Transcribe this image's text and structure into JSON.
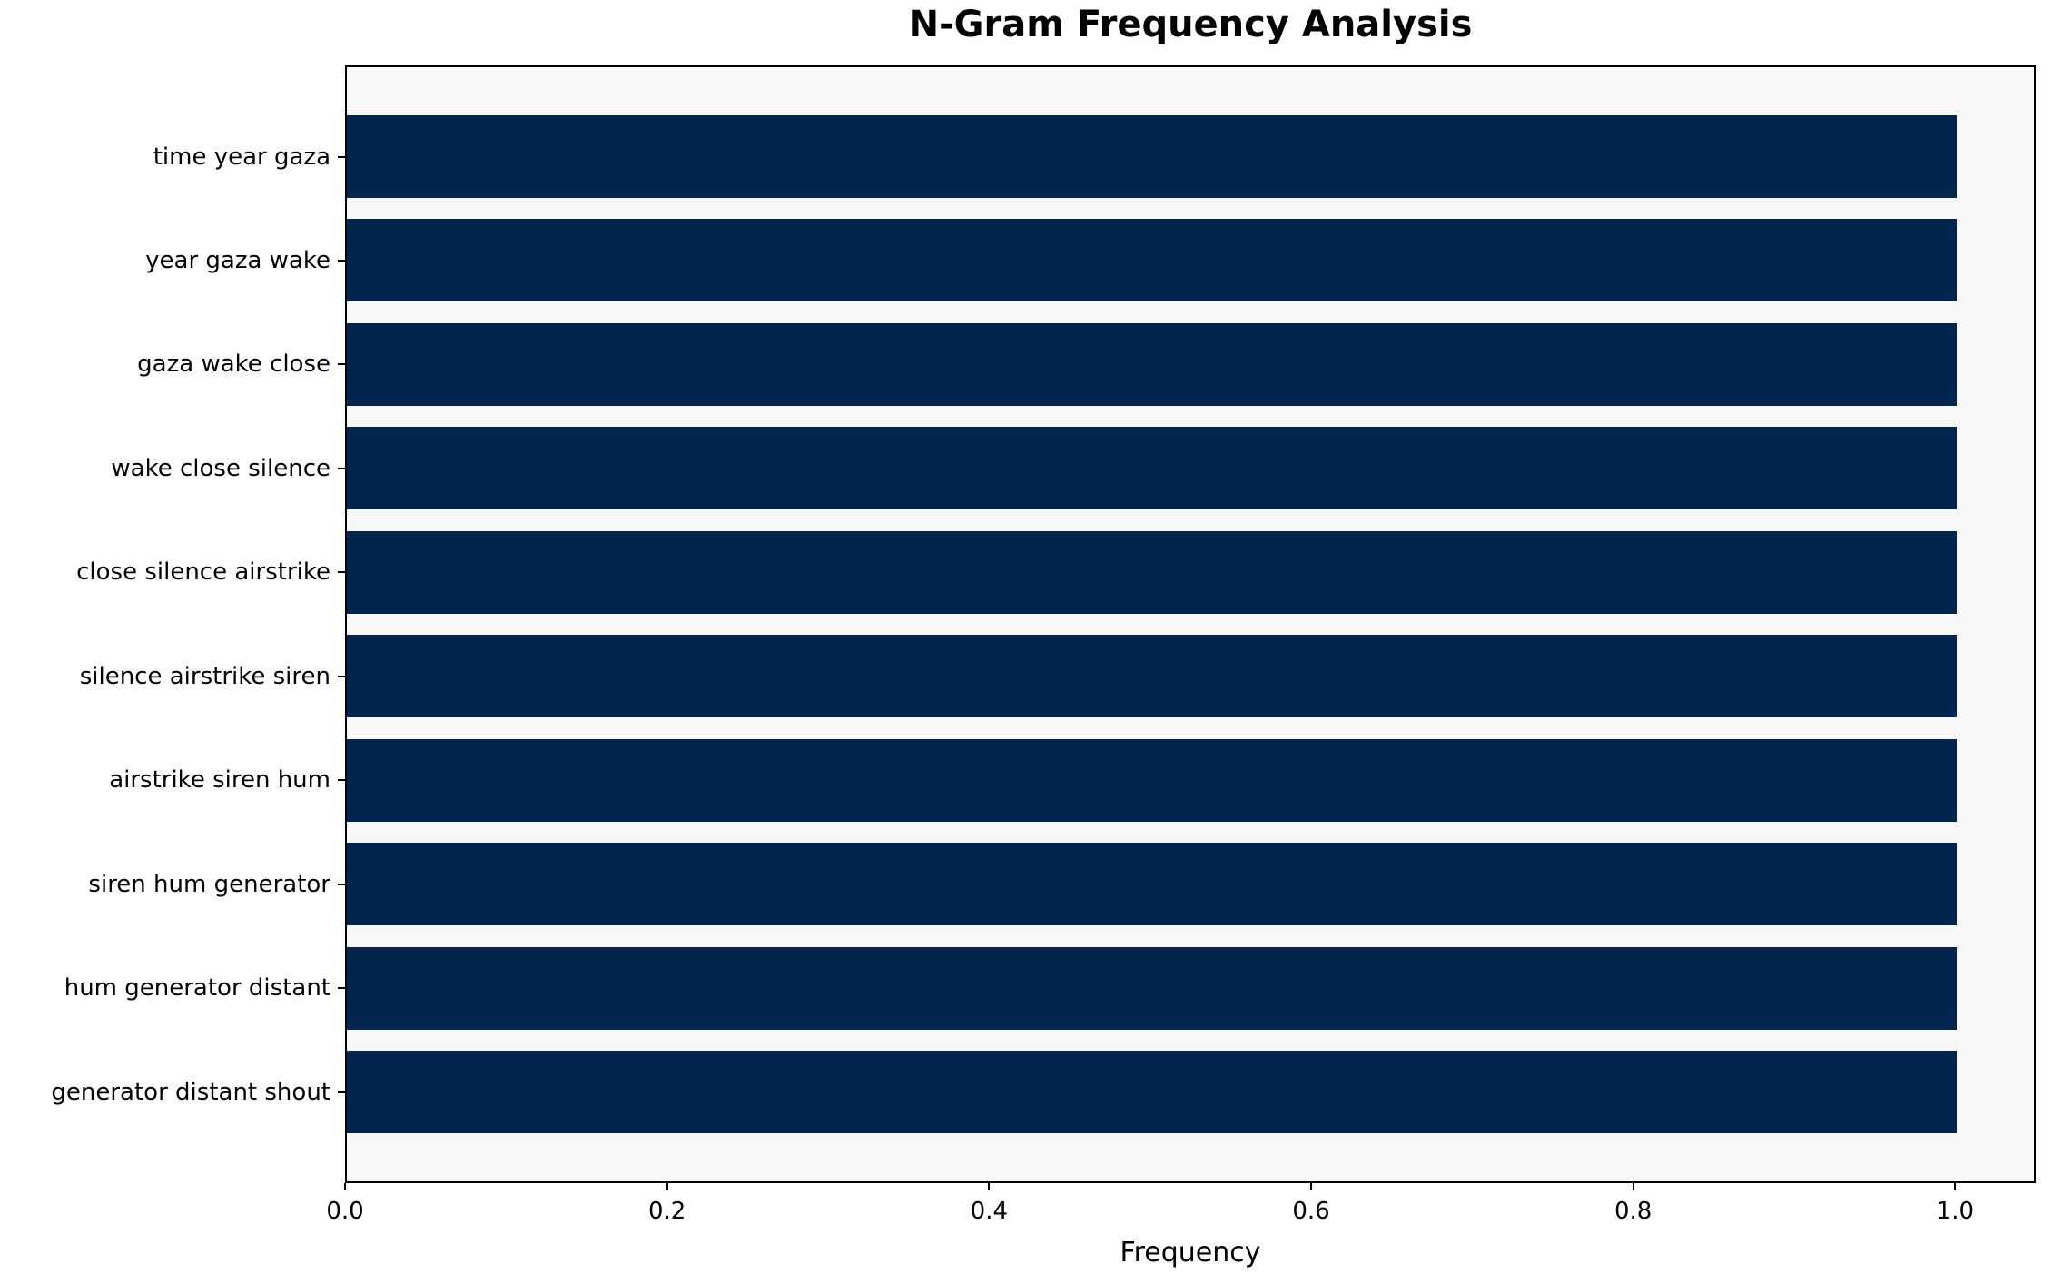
{
  "chart_data": {
    "type": "bar",
    "orientation": "horizontal",
    "title": "N-Gram Frequency Analysis",
    "xlabel": "Frequency",
    "ylabel": "",
    "categories": [
      "time year gaza",
      "year gaza wake",
      "gaza wake close",
      "wake close silence",
      "close silence airstrike",
      "silence airstrike siren",
      "airstrike siren hum",
      "siren hum generator",
      "hum generator distant",
      "generator distant shout"
    ],
    "values": [
      1.0,
      1.0,
      1.0,
      1.0,
      1.0,
      1.0,
      1.0,
      1.0,
      1.0,
      1.0
    ],
    "xlim": [
      0,
      1.05
    ],
    "xticks": [
      0.0,
      0.2,
      0.4,
      0.6,
      0.8,
      1.0
    ],
    "xtick_labels": [
      "0.0",
      "0.2",
      "0.4",
      "0.6",
      "0.8",
      "1.0"
    ],
    "grid": false,
    "legend": null,
    "bar_fraction": 0.8,
    "colors": {
      "bar": "#02254d",
      "plot_bg": "#f7f7f7",
      "figure_bg": "#ffffff",
      "spine": "#000000",
      "text": "#000000"
    }
  }
}
